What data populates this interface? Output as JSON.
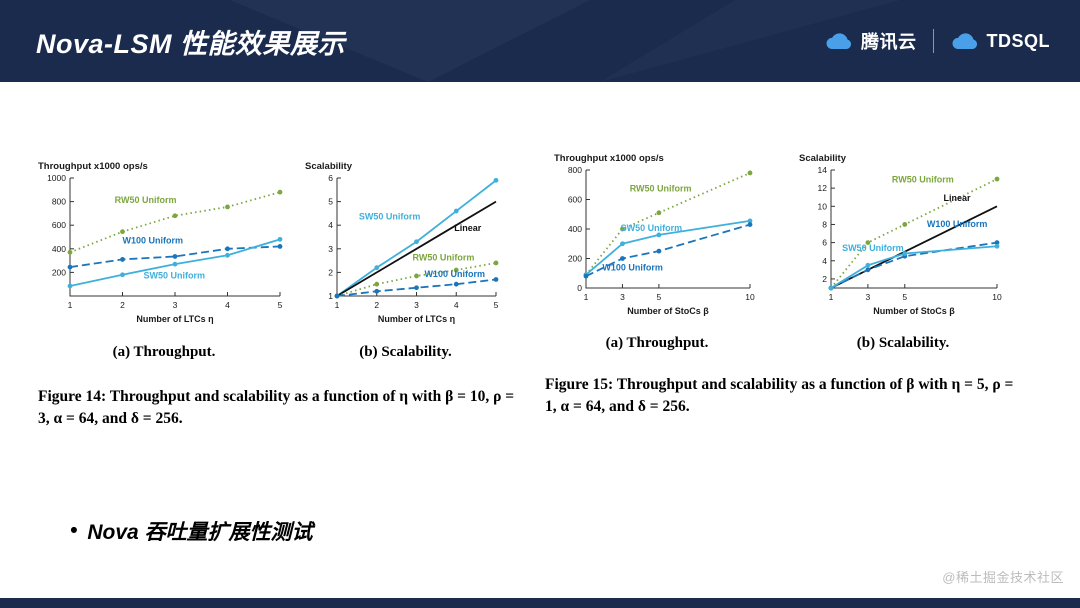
{
  "header": {
    "title": "Nova-LSM 性能效果展示",
    "separator": "|",
    "brands": [
      {
        "name": "腾讯云",
        "icon": "tencent-cloud-icon"
      },
      {
        "name": "TDSQL",
        "icon": "tdsql-cloud-icon"
      }
    ]
  },
  "colors": {
    "header_bg": "#1a2b4e",
    "brand_blue": "#4aa0e8",
    "green": "#7ca63e",
    "light_blue": "#3fb0dc",
    "dark_blue": "#1b75bb",
    "linear_black": "#111111"
  },
  "figure14": {
    "caption_a": "(a) Throughput.",
    "caption_b": "(b) Scalability.",
    "caption": "Figure 14: Throughput and scalability as a function of η with β = 10, ρ = 3, α = 64, and δ = 256."
  },
  "figure15": {
    "caption_a": "(a) Throughput.",
    "caption_b": "(b) Scalability.",
    "caption": "Figure 15: Throughput and scalability as a function of β with η = 5, ρ = 1, α = 64, and δ = 256."
  },
  "bullet": {
    "marker": "•",
    "text": "Nova 吞吐量扩展性测试"
  },
  "watermark": "@稀土掘金技术社区",
  "chart_data": [
    {
      "type": "line",
      "title": "Throughput x1000 ops/s",
      "xlabel": "Number of LTCs η",
      "xlim": [
        1,
        5
      ],
      "ylim": [
        0,
        1000
      ],
      "xticks": [
        1,
        2,
        3,
        4,
        5
      ],
      "yticks": [
        200,
        400,
        600,
        800,
        1000
      ],
      "x": [
        1,
        2,
        3,
        4,
        5
      ],
      "legend_position": "inline-labels",
      "grid": false,
      "series": [
        {
          "name": "RW50 Uniform",
          "color": "#7ca63e",
          "style": "dotted",
          "marker": true,
          "values": [
            370,
            545,
            680,
            755,
            880
          ],
          "label_at": [
            1.85,
            790
          ]
        },
        {
          "name": "W100 Uniform",
          "color": "#1b75bb",
          "style": "dashed",
          "marker": true,
          "values": [
            245,
            310,
            335,
            400,
            420
          ],
          "label_at": [
            2.0,
            445
          ]
        },
        {
          "name": "SW50 Uniform",
          "color": "#3fb0dc",
          "style": "solid",
          "marker": true,
          "values": [
            85,
            180,
            270,
            345,
            480
          ],
          "label_at": [
            2.4,
            150
          ]
        }
      ]
    },
    {
      "type": "line",
      "title": "Scalability",
      "xlabel": "Number of LTCs η",
      "xlim": [
        1,
        5
      ],
      "ylim": [
        1,
        6
      ],
      "xticks": [
        1,
        2,
        3,
        4,
        5
      ],
      "yticks": [
        1,
        2,
        3,
        4,
        5,
        6
      ],
      "x": [
        1,
        2,
        3,
        4,
        5
      ],
      "legend_position": "inline-labels",
      "grid": false,
      "series": [
        {
          "name": "SW50 Uniform",
          "color": "#3fb0dc",
          "style": "solid",
          "marker": true,
          "values": [
            1,
            2.2,
            3.3,
            4.6,
            5.9
          ],
          "label_at": [
            1.55,
            4.25
          ]
        },
        {
          "name": "Linear",
          "color": "#111111",
          "style": "solid",
          "marker": false,
          "values": [
            1,
            2,
            3,
            4,
            5
          ],
          "label_at": [
            3.95,
            3.75
          ]
        },
        {
          "name": "RW50 Uniform",
          "color": "#7ca63e",
          "style": "dotted",
          "marker": true,
          "values": [
            1,
            1.5,
            1.85,
            2.1,
            2.4
          ],
          "label_at": [
            2.9,
            2.5
          ]
        },
        {
          "name": "W100 Uniform",
          "color": "#1b75bb",
          "style": "dashed",
          "marker": true,
          "values": [
            1,
            1.2,
            1.35,
            1.5,
            1.7
          ],
          "label_at": [
            3.2,
            1.8
          ]
        }
      ]
    },
    {
      "type": "line",
      "title": "Throughput x1000 ops/s",
      "xlabel": "Number of StoCs β",
      "xlim": [
        1,
        10
      ],
      "ylim": [
        0,
        800
      ],
      "xticks": [
        1,
        3,
        5,
        10
      ],
      "yticks": [
        0,
        200,
        400,
        600,
        800
      ],
      "x": [
        1,
        3,
        5,
        10
      ],
      "legend_position": "inline-labels",
      "grid": false,
      "series": [
        {
          "name": "RW50 Uniform",
          "color": "#7ca63e",
          "style": "dotted",
          "marker": true,
          "values": [
            90,
            400,
            510,
            780
          ],
          "label_at": [
            3.4,
            655
          ]
        },
        {
          "name": "SW50 Uniform",
          "color": "#3fb0dc",
          "style": "solid",
          "marker": true,
          "values": [
            90,
            300,
            360,
            455
          ],
          "label_at": [
            2.9,
            385
          ]
        },
        {
          "name": "W100 Uniform",
          "color": "#1b75bb",
          "style": "dashed",
          "marker": true,
          "values": [
            80,
            200,
            250,
            430
          ],
          "label_at": [
            1.9,
            120
          ]
        }
      ]
    },
    {
      "type": "line",
      "title": "Scalability",
      "xlabel": "Number of StoCs β",
      "xlim": [
        1,
        10
      ],
      "ylim": [
        1,
        14
      ],
      "xticks": [
        1,
        3,
        5,
        10
      ],
      "yticks": [
        2,
        4,
        6,
        8,
        10,
        12,
        14
      ],
      "x": [
        1,
        3,
        5,
        10
      ],
      "legend_position": "inline-labels",
      "grid": false,
      "series": [
        {
          "name": "RW50 Uniform",
          "color": "#7ca63e",
          "style": "dotted",
          "marker": true,
          "values": [
            1,
            6,
            8,
            13
          ],
          "label_at": [
            4.3,
            12.6
          ]
        },
        {
          "name": "Linear",
          "color": "#111111",
          "style": "solid",
          "marker": false,
          "values": [
            1,
            3,
            5,
            10
          ],
          "label_at": [
            7.1,
            10.6
          ]
        },
        {
          "name": "W100 Uniform",
          "color": "#1b75bb",
          "style": "dashed",
          "marker": true,
          "values": [
            1,
            3,
            4.5,
            6
          ],
          "label_at": [
            6.2,
            7.7
          ]
        },
        {
          "name": "SW50 Uniform",
          "color": "#3fb0dc",
          "style": "solid",
          "marker": true,
          "values": [
            1,
            3.5,
            4.8,
            5.6
          ],
          "label_at": [
            1.6,
            5.1
          ]
        }
      ]
    }
  ]
}
